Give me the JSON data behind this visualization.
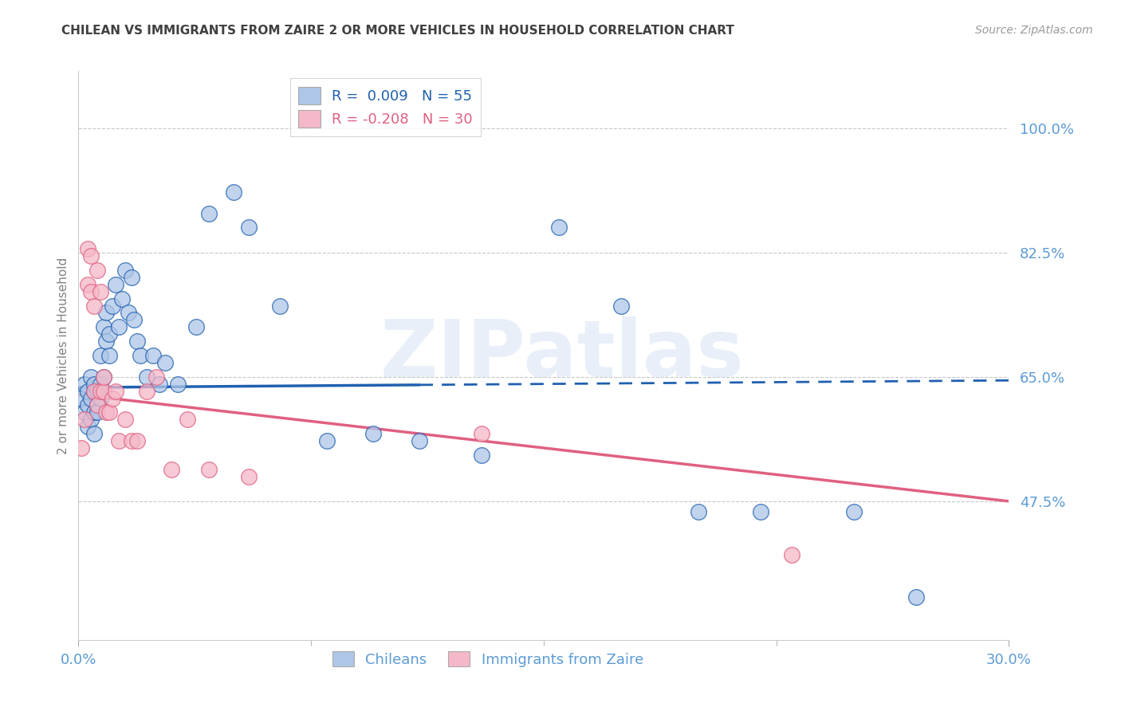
{
  "title": "CHILEAN VS IMMIGRANTS FROM ZAIRE 2 OR MORE VEHICLES IN HOUSEHOLD CORRELATION CHART",
  "source": "Source: ZipAtlas.com",
  "xlabel_chileans": "Chileans",
  "xlabel_immigrants": "Immigrants from Zaire",
  "ylabel": "2 or more Vehicles in Household",
  "x_min": 0.0,
  "x_max": 0.3,
  "y_min": 0.28,
  "y_max": 1.08,
  "yticks": [
    0.475,
    0.65,
    0.825,
    1.0
  ],
  "ytick_labels": [
    "47.5%",
    "65.0%",
    "82.5%",
    "100.0%"
  ],
  "legend_r1": "R =  0.009   N = 55",
  "legend_r2": "R = -0.208   N = 30",
  "watermark": "ZIPatlas",
  "chilean_color": "#aec6e8",
  "immigrant_color": "#f5b8c8",
  "line_chilean_color": "#2060b0",
  "line_immigrant_color": "#e06080",
  "background_color": "#ffffff",
  "grid_color": "#c8c8c8",
  "axis_label_color": "#5b9bd5",
  "title_color": "#404040",
  "ylabel_color": "#808080",
  "source_color": "#999999",
  "chilean_x": [
    0.001,
    0.002,
    0.002,
    0.003,
    0.003,
    0.003,
    0.004,
    0.004,
    0.004,
    0.005,
    0.005,
    0.005,
    0.005,
    0.006,
    0.006,
    0.006,
    0.007,
    0.007,
    0.007,
    0.008,
    0.008,
    0.009,
    0.009,
    0.01,
    0.01,
    0.011,
    0.012,
    0.013,
    0.014,
    0.015,
    0.016,
    0.017,
    0.018,
    0.019,
    0.02,
    0.022,
    0.024,
    0.026,
    0.028,
    0.032,
    0.038,
    0.042,
    0.05,
    0.055,
    0.065,
    0.08,
    0.095,
    0.11,
    0.13,
    0.155,
    0.175,
    0.2,
    0.22,
    0.25,
    0.27
  ],
  "chilean_y": [
    0.62,
    0.6,
    0.64,
    0.58,
    0.61,
    0.63,
    0.59,
    0.62,
    0.65,
    0.6,
    0.63,
    0.57,
    0.64,
    0.61,
    0.6,
    0.63,
    0.62,
    0.64,
    0.68,
    0.65,
    0.72,
    0.7,
    0.74,
    0.68,
    0.71,
    0.75,
    0.78,
    0.72,
    0.76,
    0.8,
    0.74,
    0.79,
    0.73,
    0.7,
    0.68,
    0.65,
    0.68,
    0.64,
    0.67,
    0.64,
    0.72,
    0.88,
    0.91,
    0.86,
    0.75,
    0.56,
    0.57,
    0.56,
    0.54,
    0.86,
    0.75,
    0.46,
    0.46,
    0.46,
    0.34
  ],
  "immigrant_x": [
    0.001,
    0.002,
    0.003,
    0.003,
    0.004,
    0.004,
    0.005,
    0.005,
    0.006,
    0.006,
    0.007,
    0.007,
    0.008,
    0.008,
    0.009,
    0.01,
    0.011,
    0.012,
    0.013,
    0.015,
    0.017,
    0.019,
    0.022,
    0.025,
    0.03,
    0.035,
    0.042,
    0.055,
    0.13,
    0.23
  ],
  "immigrant_y": [
    0.55,
    0.59,
    0.78,
    0.83,
    0.82,
    0.77,
    0.75,
    0.63,
    0.8,
    0.61,
    0.63,
    0.77,
    0.63,
    0.65,
    0.6,
    0.6,
    0.62,
    0.63,
    0.56,
    0.59,
    0.56,
    0.56,
    0.63,
    0.65,
    0.52,
    0.59,
    0.52,
    0.51,
    0.57,
    0.4
  ],
  "chile_line_x0": 0.0,
  "chile_line_x1": 0.3,
  "chile_line_y0": 0.635,
  "chile_line_y1": 0.645,
  "chile_line_split": 0.11,
  "immig_line_x0": 0.0,
  "immig_line_x1": 0.3,
  "immig_line_y0": 0.625,
  "immig_line_y1": 0.475
}
